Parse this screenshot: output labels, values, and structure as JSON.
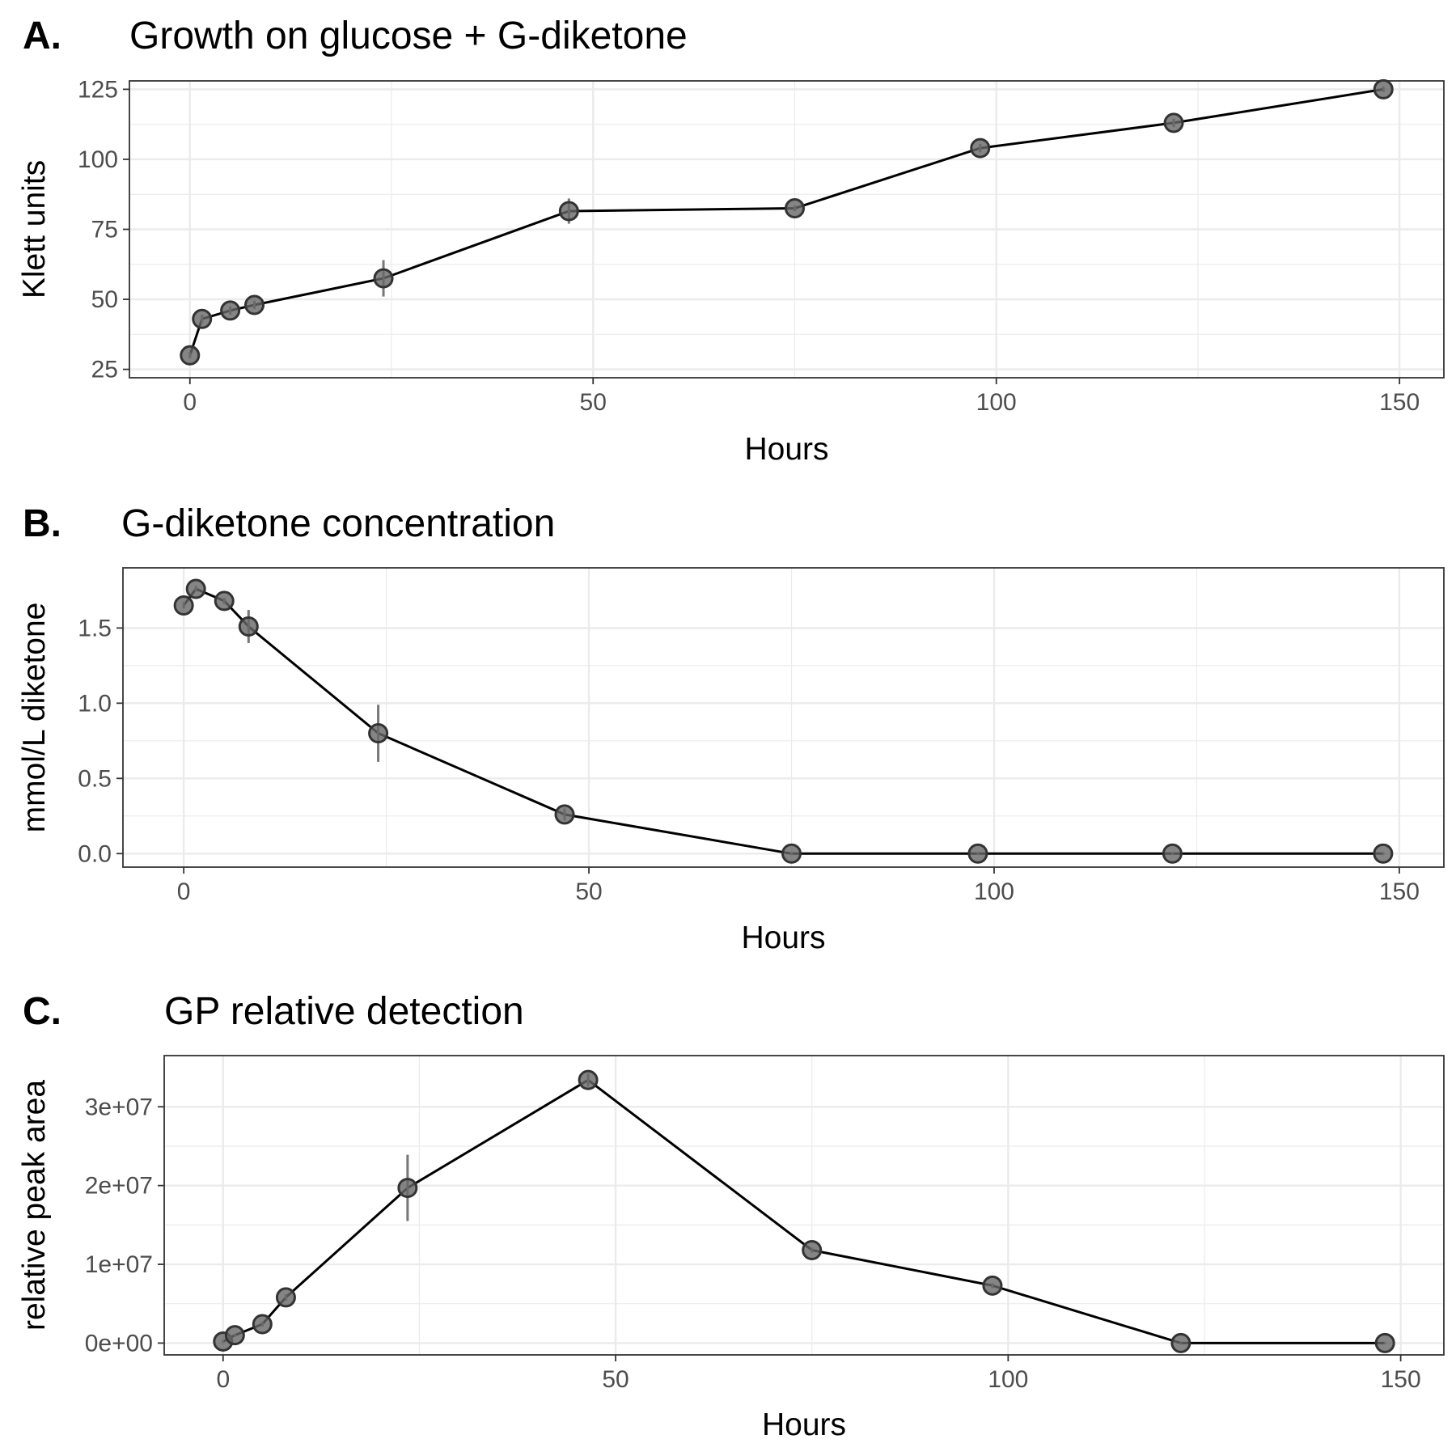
{
  "chart_data": [
    {
      "type": "line",
      "letter": "A.",
      "title": "Growth on glucose + G-diketone",
      "xlabel": "Hours",
      "ylabel": "Klett units",
      "xlim": [
        -7.5,
        155.5
      ],
      "ylim": [
        22,
        128
      ],
      "xticks": [
        0,
        50,
        100,
        150
      ],
      "xtick_labels": [
        "0",
        "50",
        "100",
        "150"
      ],
      "yticks": [
        25,
        50,
        75,
        100,
        125
      ],
      "ytick_labels": [
        "25",
        "50",
        "75",
        "100",
        "125"
      ],
      "x": [
        0,
        1.5,
        5,
        8,
        24,
        47,
        75,
        98,
        122,
        148
      ],
      "values": [
        30,
        43,
        46,
        48,
        57.5,
        81.5,
        82.5,
        104,
        113,
        125
      ],
      "error": [
        1,
        1.5,
        1.5,
        1.5,
        6.5,
        4.5,
        1,
        1.5,
        1.5,
        1
      ],
      "grid": true
    },
    {
      "type": "line",
      "letter": "B.",
      "title": "G-diketone concentration",
      "xlabel": "Hours",
      "ylabel": "mmol/L diketone",
      "xlim": [
        -7.5,
        155.5
      ],
      "ylim": [
        -0.09,
        1.9
      ],
      "xticks": [
        0,
        50,
        100,
        150
      ],
      "xtick_labels": [
        "0",
        "50",
        "100",
        "150"
      ],
      "yticks": [
        0,
        0.5,
        1.0,
        1.5
      ],
      "ytick_labels": [
        "0.0",
        "0.5",
        "1.0",
        "1.5"
      ],
      "x": [
        0,
        1.5,
        5,
        8,
        24,
        47,
        75,
        98,
        122,
        148
      ],
      "values": [
        1.65,
        1.76,
        1.68,
        1.51,
        0.8,
        0.26,
        0,
        0,
        0,
        0
      ],
      "error": [
        0.02,
        0.02,
        0.02,
        0.11,
        0.19,
        0.04,
        0.01,
        0.01,
        0.01,
        0.01
      ],
      "grid": true
    },
    {
      "type": "line",
      "letter": "C.",
      "title": "GP relative detection",
      "xlabel": "Hours",
      "ylabel": "relative peak area",
      "xlim": [
        -7.5,
        155.5
      ],
      "ylim": [
        -1500000,
        36500000
      ],
      "xticks": [
        0,
        50,
        100,
        150
      ],
      "xtick_labels": [
        "0",
        "50",
        "100",
        "150"
      ],
      "yticks": [
        0,
        10000000,
        20000000,
        30000000
      ],
      "ytick_labels": [
        "0e+00",
        "1e+07",
        "2e+07",
        "3e+07"
      ],
      "x": [
        0,
        1.5,
        5,
        8,
        23.5,
        46.5,
        75,
        98,
        122,
        148
      ],
      "values": [
        200000,
        1000000,
        2400000,
        5800000,
        19700000,
        33400000,
        11800000,
        7300000,
        0,
        0
      ],
      "error": [
        200000,
        200000,
        300000,
        400000,
        4200000,
        800000,
        300000,
        300000,
        100000,
        100000
      ],
      "grid": true
    }
  ]
}
